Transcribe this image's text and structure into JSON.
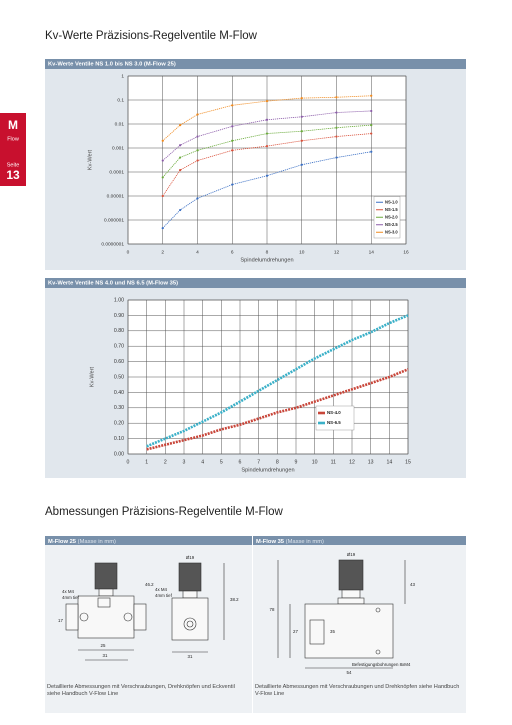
{
  "page": {
    "title": "Kv-Werte Präzisions-Regelventile M-Flow",
    "tab": {
      "product": "M",
      "product_sub": "Flow",
      "page_label": "Seite",
      "page_number": "13"
    },
    "section_title": "Abmessungen Präzisions-Regelventile M-Flow"
  },
  "chart_data": [
    {
      "type": "line",
      "title": "Kv-Werte Ventile NS 1.0 bis NS 3.0 (M-Flow 25)",
      "x_label": "Spindelumdrehungen",
      "y_label": "Kv-Wert",
      "log_y": true,
      "grid": true,
      "legend": "lower right",
      "xlim": [
        0,
        16
      ],
      "xticks": [
        0,
        2,
        4,
        6,
        8,
        10,
        12,
        14,
        16
      ],
      "ylim": [
        1e-07,
        1
      ],
      "yticks": [
        1,
        0.1,
        0.01,
        0.001,
        0.0001,
        1e-05,
        1e-06,
        {
          "value": 1e-07,
          "label": "0.0000001"
        }
      ],
      "x": [
        2,
        3,
        4,
        6,
        8,
        10,
        12,
        14
      ],
      "series": [
        {
          "name": "NS-1.0",
          "color": "#3a6fc4",
          "values": [
            4.6e-07,
            2.6e-06,
            8e-06,
            3e-05,
            7e-05,
            0.0002,
            0.0004,
            0.0007
          ]
        },
        {
          "name": "NS-1.5",
          "color": "#d9503a",
          "values": [
            1e-05,
            0.00012,
            0.0003,
            0.0008,
            0.0012,
            0.002,
            0.003,
            0.004
          ]
        },
        {
          "name": "NS-2.0",
          "color": "#6aaa3a",
          "values": [
            6e-05,
            0.0004,
            0.0008,
            0.002,
            0.004,
            0.005,
            0.007,
            0.009
          ]
        },
        {
          "name": "NS-2.5",
          "color": "#8a5aa8",
          "values": [
            0.0003,
            0.0013,
            0.003,
            0.008,
            0.015,
            0.02,
            0.03,
            0.035
          ]
        },
        {
          "name": "NS-3.0",
          "color": "#f08a1e",
          "values": [
            0.002,
            0.009,
            0.025,
            0.06,
            0.09,
            0.12,
            0.13,
            0.15
          ]
        }
      ]
    },
    {
      "type": "line",
      "title": "Kv-Werte Ventile NS 4.0 und NS 6.5 (M-Flow 35)",
      "x_label": "Spindelumdrehungen",
      "y_label": "Kv-Wert",
      "log_y": false,
      "grid": true,
      "legend": "lower right",
      "xlim": [
        0,
        15
      ],
      "xticks": [
        0,
        1,
        2,
        3,
        4,
        5,
        6,
        7,
        8,
        9,
        10,
        11,
        12,
        13,
        14,
        15
      ],
      "ylim": [
        0,
        1
      ],
      "yticks": [
        {
          "value": 0,
          "label": "0.00"
        },
        {
          "value": 0.1,
          "label": "0.10"
        },
        {
          "value": 0.2,
          "label": "0.20"
        },
        {
          "value": 0.3,
          "label": "0.30"
        },
        {
          "value": 0.4,
          "label": "0.40"
        },
        {
          "value": 0.5,
          "label": "0.50"
        },
        {
          "value": 0.6,
          "label": "0.60"
        },
        {
          "value": 0.7,
          "label": "0.70"
        },
        {
          "value": 0.8,
          "label": "0.80"
        },
        {
          "value": 0.9,
          "label": "0.90"
        },
        {
          "value": 1,
          "label": "1.00"
        }
      ],
      "x": [
        1,
        2,
        3,
        4,
        5,
        6,
        7,
        8,
        9,
        10,
        11,
        12,
        13,
        14,
        15
      ],
      "series": [
        {
          "name": "NS-4.0",
          "color": "#c8463a",
          "values": [
            0.03,
            0.06,
            0.09,
            0.12,
            0.16,
            0.19,
            0.23,
            0.27,
            0.3,
            0.34,
            0.38,
            0.42,
            0.46,
            0.5,
            0.55
          ]
        },
        {
          "name": "NS-6.5",
          "color": "#3ab0c8",
          "values": [
            0.05,
            0.1,
            0.15,
            0.21,
            0.27,
            0.34,
            0.41,
            0.48,
            0.55,
            0.62,
            0.68,
            0.74,
            0.79,
            0.85,
            0.9
          ]
        }
      ]
    }
  ],
  "drawings": [
    {
      "title": "M-Flow 25",
      "unit_note": "(Masse in mm)",
      "caption": "Detaillierte Abmessungen mit Verschraubungen, Drehknöpfen und Eckventil siehe Handbuch V-Flow Line",
      "labels": [
        "4x M4",
        "4mm tief",
        "46.2",
        "17",
        "25",
        "31",
        "Ø19",
        "38.2",
        "4x M4",
        "4mm tief",
        "31"
      ]
    },
    {
      "title": "M-Flow 35",
      "unit_note": "(Masse in mm)",
      "caption": "Detaillierte Abmessungen mit Verschraubungen und Drehknöpfen siehe Handbuch V-Flow Line",
      "labels": [
        "Ø19",
        "43",
        "78",
        "27",
        "35",
        "54",
        "Befestigungsbohrungen 8xM4"
      ]
    }
  ]
}
